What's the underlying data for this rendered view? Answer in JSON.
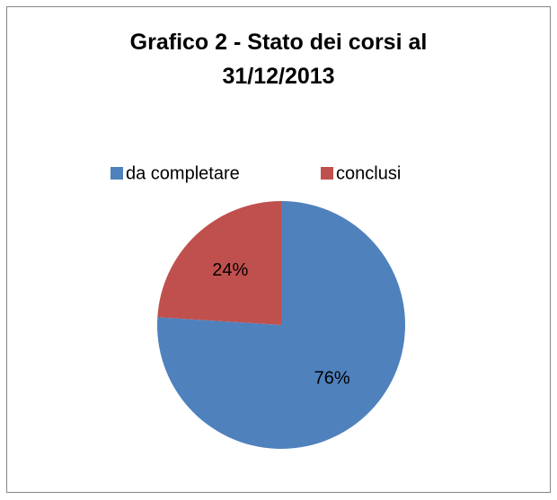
{
  "chart_data": {
    "type": "pie",
    "title": "Grafico 2 - Stato dei corsi al 31/12/2013",
    "categories": [
      "da completare",
      "conclusi"
    ],
    "values": [
      76,
      24
    ],
    "value_labels": [
      "76%",
      "24%"
    ],
    "colors": [
      "#4f81bd",
      "#c0504d"
    ],
    "legend": "top"
  }
}
